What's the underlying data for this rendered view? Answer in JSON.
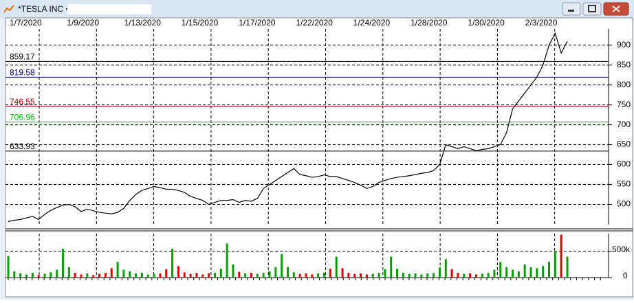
{
  "window": {
    "title": "*TESLA INC <"
  },
  "chart_data": {
    "type": "line",
    "color": "#000000",
    "x_labels": [
      "1/7/2020",
      "1/9/2020",
      "1/13/2020",
      "1/15/2020",
      "1/17/2020",
      "1/22/2020",
      "1/24/2020",
      "1/28/2020",
      "1/30/2020",
      "2/3/2020"
    ],
    "ylim": [
      449,
      941
    ],
    "yticks": [
      500,
      550,
      600,
      650,
      700,
      750,
      800,
      850,
      900
    ],
    "grid": true,
    "levels": [
      {
        "value": 859.17,
        "color": "#000000"
      },
      {
        "value": 819.58,
        "color": "#000080"
      },
      {
        "value": 746.55,
        "color": "#c00000"
      },
      {
        "value": 706.96,
        "color": "#00c000"
      },
      {
        "value": 633.93,
        "color": "#000000"
      }
    ],
    "values": [
      457,
      460,
      462,
      466,
      470,
      462,
      475,
      485,
      492,
      498,
      500,
      494,
      482,
      488,
      484,
      480,
      478,
      476,
      480,
      490,
      510,
      525,
      535,
      540,
      545,
      542,
      538,
      538,
      535,
      530,
      520,
      515,
      510,
      500,
      505,
      510,
      510,
      512,
      505,
      510,
      508,
      515,
      540,
      550,
      560,
      570,
      580,
      590,
      575,
      572,
      568,
      570,
      574,
      570,
      570,
      565,
      560,
      555,
      548,
      540,
      545,
      555,
      560,
      565,
      568,
      570,
      572,
      575,
      578,
      580,
      585,
      600,
      650,
      645,
      640,
      645,
      640,
      635,
      638,
      640,
      645,
      650,
      680,
      740,
      760,
      780,
      800,
      820,
      850,
      900,
      930,
      880,
      910
    ]
  },
  "volume_chart": {
    "type": "bar",
    "ylim": [
      0,
      840000
    ],
    "yticks": [
      0,
      {
        "value": 500000,
        "label": "500k"
      }
    ],
    "grid": true,
    "colors": {
      "up": "#00a000",
      "down": "#e00000"
    },
    "values": [
      410000,
      120000,
      80000,
      60000,
      90000,
      50000,
      70000,
      100000,
      150000,
      550000,
      200000,
      90000,
      60000,
      80000,
      50000,
      70000,
      90000,
      180000,
      300000,
      150000,
      120000,
      80000,
      90000,
      60000,
      70000,
      80000,
      160000,
      550000,
      220000,
      100000,
      70000,
      90000,
      60000,
      80000,
      90000,
      170000,
      650000,
      250000,
      110000,
      80000,
      90000,
      70000,
      90000,
      120000,
      200000,
      450000,
      200000,
      100000,
      70000,
      80000,
      60000,
      80000,
      90000,
      170000,
      400000,
      180000,
      90000,
      70000,
      80000,
      60000,
      70000,
      90000,
      160000,
      400000,
      170000,
      90000,
      70000,
      80000,
      60000,
      80000,
      90000,
      190000,
      350000,
      160000,
      90000,
      70000,
      80000,
      60000,
      70000,
      90000,
      150000,
      300000,
      200000,
      150000,
      120000,
      250000,
      200000,
      180000,
      220000,
      300000,
      500000,
      820000,
      400000
    ]
  }
}
